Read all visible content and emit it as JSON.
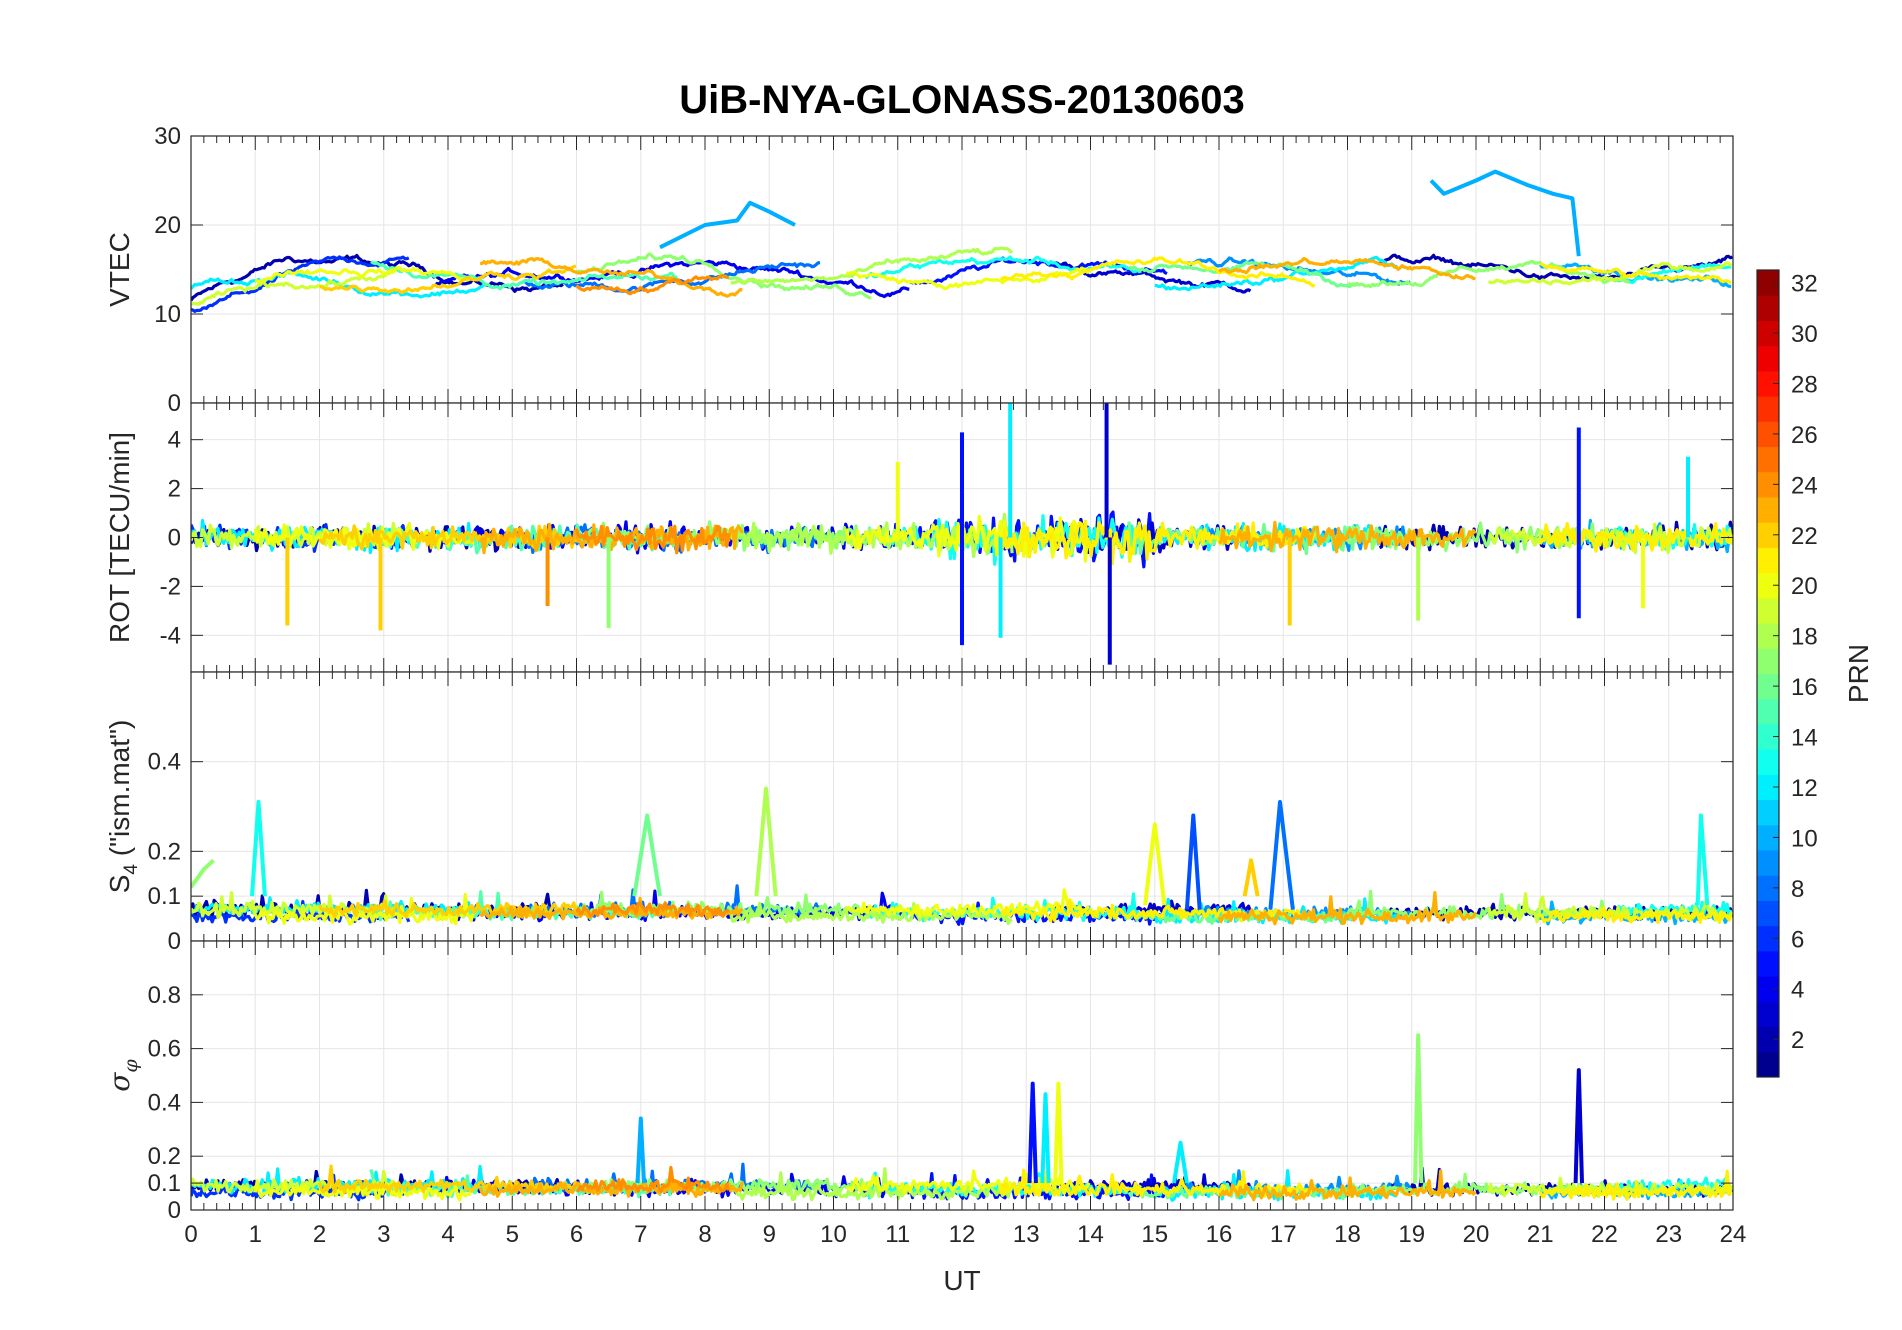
{
  "chart_data": {
    "type": "line",
    "title": "UiB-NYA-GLONASS-20130603",
    "xlabel": "UT",
    "xlim": [
      0,
      24
    ],
    "xticks": [
      0,
      1,
      2,
      3,
      4,
      5,
      6,
      7,
      8,
      9,
      10,
      11,
      12,
      13,
      14,
      15,
      16,
      17,
      18,
      19,
      20,
      21,
      22,
      23,
      24
    ],
    "colorbar": {
      "label": "PRN",
      "colormap": "jet",
      "range": [
        1,
        32
      ],
      "ticks": [
        2,
        4,
        6,
        8,
        10,
        12,
        14,
        16,
        18,
        20,
        22,
        24,
        26,
        28,
        30,
        32
      ]
    },
    "panels": [
      {
        "id": "vtec",
        "ylabel": "VTEC",
        "ylim": [
          0,
          30
        ],
        "yticks": [
          0,
          10,
          20,
          30
        ],
        "baseline": 14.5,
        "noise": 1.2,
        "features": [
          {
            "prn": 10,
            "x": [
              7.3,
              8.0,
              8.5,
              8.7,
              9.0,
              9.4
            ],
            "y": [
              17.5,
              20.0,
              20.5,
              22.5,
              21.5,
              20.0
            ]
          },
          {
            "prn": 10,
            "x": [
              19.3,
              19.5,
              20.0,
              20.3,
              20.8,
              21.2,
              21.5,
              21.6
            ],
            "y": [
              25.0,
              23.5,
              25.0,
              26.0,
              24.5,
              23.5,
              23.0,
              16.5
            ]
          }
        ]
      },
      {
        "id": "rot",
        "ylabel": "ROT [TECU/min]",
        "ylim": [
          -5.5,
          5.5
        ],
        "yticks": [
          -4,
          -2,
          0,
          2,
          4
        ],
        "baseline": 0,
        "noise": 0.45,
        "features": [
          {
            "prn": 5,
            "x": [
              12.0
            ],
            "y": [
              4.3
            ]
          },
          {
            "prn": 5,
            "x": [
              12.0
            ],
            "y": [
              -4.4
            ]
          },
          {
            "prn": 12,
            "x": [
              12.75
            ],
            "y": [
              5.5
            ]
          },
          {
            "prn": 12,
            "x": [
              12.6
            ],
            "y": [
              -4.1
            ]
          },
          {
            "prn": 3,
            "x": [
              14.25
            ],
            "y": [
              5.5
            ]
          },
          {
            "prn": 3,
            "x": [
              14.3
            ],
            "y": [
              -5.2
            ]
          },
          {
            "prn": 22,
            "x": [
              1.5
            ],
            "y": [
              -3.6
            ]
          },
          {
            "prn": 22,
            "x": [
              2.95
            ],
            "y": [
              -3.8
            ]
          },
          {
            "prn": 24,
            "x": [
              5.55
            ],
            "y": [
              -2.8
            ]
          },
          {
            "prn": 17,
            "x": [
              6.5
            ],
            "y": [
              -3.7
            ]
          },
          {
            "prn": 22,
            "x": [
              17.1
            ],
            "y": [
              -3.6
            ]
          },
          {
            "prn": 18,
            "x": [
              19.1
            ],
            "y": [
              -3.4
            ]
          },
          {
            "prn": 5,
            "x": [
              21.6
            ],
            "y": [
              4.5
            ]
          },
          {
            "prn": 5,
            "x": [
              21.6
            ],
            "y": [
              -3.3
            ]
          },
          {
            "prn": 20,
            "x": [
              22.6
            ],
            "y": [
              -2.9
            ]
          },
          {
            "prn": 20,
            "x": [
              11.0
            ],
            "y": [
              3.1
            ]
          },
          {
            "prn": 12,
            "x": [
              23.3
            ],
            "y": [
              3.3
            ]
          }
        ]
      },
      {
        "id": "s4",
        "ylabel": "S4 (\"ism.mat\")",
        "ylabel_main": "S",
        "ylabel_sub": "4",
        "ylabel_rest": " (\"ism.mat\")",
        "ylim": [
          0,
          0.6
        ],
        "yticks": [
          0,
          0.1,
          0.2,
          0.4
        ],
        "baseline": 0.07,
        "noise": 0.015,
        "features": [
          {
            "prn": 13,
            "x": [
              0.95,
              1.05,
              1.15
            ],
            "y": [
              0.1,
              0.31,
              0.1
            ]
          },
          {
            "prn": 17,
            "x": [
              0.0,
              0.2,
              0.35
            ],
            "y": [
              0.12,
              0.16,
              0.18
            ]
          },
          {
            "prn": 16,
            "x": [
              6.9,
              7.1,
              7.3
            ],
            "y": [
              0.1,
              0.28,
              0.1
            ]
          },
          {
            "prn": 18,
            "x": [
              8.8,
              8.95,
              9.1
            ],
            "y": [
              0.1,
              0.34,
              0.1
            ]
          },
          {
            "prn": 20,
            "x": [
              14.85,
              15.0,
              15.15
            ],
            "y": [
              0.08,
              0.26,
              0.08
            ]
          },
          {
            "prn": 7,
            "x": [
              15.5,
              15.6,
              15.7
            ],
            "y": [
              0.07,
              0.28,
              0.07
            ]
          },
          {
            "prn": 8,
            "x": [
              16.8,
              16.95,
              17.15
            ],
            "y": [
              0.07,
              0.31,
              0.07
            ]
          },
          {
            "prn": 13,
            "x": [
              23.45,
              23.5,
              23.6
            ],
            "y": [
              0.08,
              0.28,
              0.08
            ]
          },
          {
            "prn": 22,
            "x": [
              16.4,
              16.5,
              16.6
            ],
            "y": [
              0.1,
              0.18,
              0.1
            ]
          }
        ]
      },
      {
        "id": "sigma_phi",
        "ylabel": "σφ",
        "ylabel_main": "σ",
        "ylabel_sub": "φ",
        "ylim": [
          0,
          1
        ],
        "yticks": [
          0,
          0.1,
          0.2,
          0.4,
          0.6,
          0.8
        ],
        "baseline": 0.09,
        "noise": 0.025,
        "features": [
          {
            "prn": 10,
            "x": [
              6.95,
              7.0,
              7.05
            ],
            "y": [
              0.1,
              0.34,
              0.1
            ]
          },
          {
            "prn": 5,
            "x": [
              13.05,
              13.1,
              13.15
            ],
            "y": [
              0.1,
              0.47,
              0.1
            ]
          },
          {
            "prn": 12,
            "x": [
              13.25,
              13.3,
              13.35
            ],
            "y": [
              0.1,
              0.43,
              0.1
            ]
          },
          {
            "prn": 20,
            "x": [
              13.45,
              13.5,
              13.55
            ],
            "y": [
              0.1,
              0.47,
              0.1
            ]
          },
          {
            "prn": 17,
            "x": [
              19.05,
              19.1,
              19.15
            ],
            "y": [
              0.1,
              0.65,
              0.1
            ]
          },
          {
            "prn": 3,
            "x": [
              21.55,
              21.6,
              21.65
            ],
            "y": [
              0.1,
              0.52,
              0.1
            ]
          },
          {
            "prn": 12,
            "x": [
              15.3,
              15.4,
              15.5
            ],
            "y": [
              0.1,
              0.25,
              0.1
            ]
          }
        ]
      }
    ],
    "satellite_tracks": [
      {
        "prn": 2,
        "start": 0.0,
        "end": 5.8
      },
      {
        "prn": 4,
        "start": 3.8,
        "end": 11.2
      },
      {
        "prn": 5,
        "start": 11.2,
        "end": 15.2
      },
      {
        "prn": 3,
        "start": 13.4,
        "end": 16.5
      },
      {
        "prn": 2,
        "start": 18.5,
        "end": 24.0
      },
      {
        "prn": 6,
        "start": 0.0,
        "end": 3.4
      },
      {
        "prn": 8,
        "start": 5.2,
        "end": 9.8
      },
      {
        "prn": 9,
        "start": 15.5,
        "end": 19.0
      },
      {
        "prn": 10,
        "start": 21.0,
        "end": 24.0
      },
      {
        "prn": 12,
        "start": 0.0,
        "end": 4.6
      },
      {
        "prn": 13,
        "start": 10.5,
        "end": 14.8
      },
      {
        "prn": 12,
        "start": 15.0,
        "end": 18.8
      },
      {
        "prn": 13,
        "start": 22.2,
        "end": 24.0
      },
      {
        "prn": 15,
        "start": 2.8,
        "end": 7.6
      },
      {
        "prn": 16,
        "start": 14.6,
        "end": 18.2
      },
      {
        "prn": 17,
        "start": 6.0,
        "end": 10.6
      },
      {
        "prn": 17,
        "start": 18.0,
        "end": 22.4
      },
      {
        "prn": 18,
        "start": 8.4,
        "end": 12.8
      },
      {
        "prn": 19,
        "start": 0.0,
        "end": 3.2
      },
      {
        "prn": 19,
        "start": 20.2,
        "end": 24.0
      },
      {
        "prn": 20,
        "start": 1.0,
        "end": 4.4
      },
      {
        "prn": 20,
        "start": 10.2,
        "end": 14.0
      },
      {
        "prn": 21,
        "start": 12.6,
        "end": 17.5
      },
      {
        "prn": 21,
        "start": 21.0,
        "end": 24.0
      },
      {
        "prn": 22,
        "start": 2.0,
        "end": 6.0
      },
      {
        "prn": 23,
        "start": 4.5,
        "end": 8.6
      },
      {
        "prn": 23,
        "start": 16.0,
        "end": 20.0
      },
      {
        "prn": 24,
        "start": 6.0,
        "end": 8.4
      }
    ]
  }
}
